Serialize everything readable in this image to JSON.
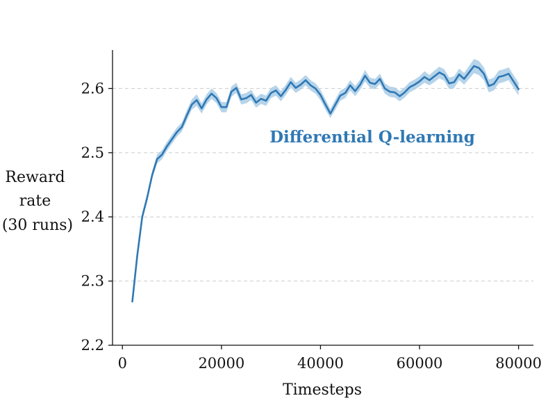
{
  "chart_data": {
    "type": "line",
    "xlabel": "Timesteps",
    "ylabel": [
      "Reward",
      "rate",
      "(30 runs)"
    ],
    "xlim": [
      -2000,
      83000
    ],
    "ylim": [
      2.2,
      2.66
    ],
    "xticks": [
      0,
      20000,
      40000,
      60000,
      80000
    ],
    "xtick_labels": [
      "0",
      "20000",
      "40000",
      "60000",
      "80000"
    ],
    "yticks": [
      2.2,
      2.3,
      2.4,
      2.5,
      2.6
    ],
    "ytick_labels": [
      "2.2",
      "2.3",
      "2.4",
      "2.5",
      "2.6"
    ],
    "grid": "horizontal-dashed",
    "annotation": "Differential Q-learning",
    "colors": {
      "line": "#2f78b4",
      "band": "#a9cce6",
      "annotation": "#2f78b4",
      "grid": "#cccccc",
      "axis": "#111111"
    },
    "series": [
      {
        "x": [
          2000,
          3000,
          4000,
          5000,
          6000,
          7000,
          8000,
          9000,
          10000,
          11000,
          12000,
          13000,
          14000,
          15000,
          16000,
          17000,
          18000,
          19000,
          20000,
          21000,
          22000,
          23000,
          24000,
          25000,
          26000,
          27000,
          28000,
          29000,
          30000,
          31000,
          32000,
          33000,
          34000,
          35000,
          36000,
          37000,
          38000,
          39000,
          40000,
          41000,
          42000,
          43000,
          44000,
          45000,
          46000,
          47000,
          48000,
          49000,
          50000,
          51000,
          52000,
          53000,
          54000,
          55000,
          56000,
          57000,
          58000,
          59000,
          60000,
          61000,
          62000,
          63000,
          64000,
          65000,
          66000,
          67000,
          68000,
          69000,
          70000,
          71000,
          72000,
          73000,
          74000,
          75000,
          76000,
          77000,
          78000,
          79000,
          80000
        ],
        "y": [
          2.268,
          2.34,
          2.4,
          2.43,
          2.465,
          2.49,
          2.497,
          2.51,
          2.521,
          2.532,
          2.54,
          2.558,
          2.575,
          2.582,
          2.569,
          2.583,
          2.592,
          2.585,
          2.571,
          2.571,
          2.595,
          2.601,
          2.583,
          2.585,
          2.59,
          2.578,
          2.584,
          2.581,
          2.593,
          2.597,
          2.588,
          2.598,
          2.61,
          2.601,
          2.606,
          2.613,
          2.605,
          2.6,
          2.59,
          2.575,
          2.561,
          2.575,
          2.589,
          2.593,
          2.605,
          2.596,
          2.606,
          2.62,
          2.609,
          2.607,
          2.615,
          2.6,
          2.595,
          2.594,
          2.588,
          2.594,
          2.602,
          2.606,
          2.611,
          2.618,
          2.613,
          2.619,
          2.625,
          2.621,
          2.608,
          2.61,
          2.622,
          2.615,
          2.625,
          2.635,
          2.632,
          2.623,
          2.604,
          2.607,
          2.618,
          2.62,
          2.623,
          2.611,
          2.599
        ],
        "err": [
          0.004,
          0.005,
          0.006,
          0.006,
          0.006,
          0.007,
          0.007,
          0.007,
          0.007,
          0.007,
          0.007,
          0.008,
          0.008,
          0.009,
          0.008,
          0.008,
          0.008,
          0.008,
          0.008,
          0.008,
          0.008,
          0.008,
          0.008,
          0.008,
          0.008,
          0.008,
          0.008,
          0.008,
          0.008,
          0.008,
          0.008,
          0.008,
          0.008,
          0.008,
          0.008,
          0.008,
          0.008,
          0.008,
          0.008,
          0.008,
          0.007,
          0.008,
          0.008,
          0.008,
          0.008,
          0.008,
          0.008,
          0.009,
          0.008,
          0.008,
          0.008,
          0.008,
          0.008,
          0.008,
          0.008,
          0.008,
          0.008,
          0.008,
          0.008,
          0.009,
          0.008,
          0.009,
          0.009,
          0.009,
          0.009,
          0.009,
          0.009,
          0.009,
          0.01,
          0.011,
          0.011,
          0.01,
          0.01,
          0.01,
          0.01,
          0.01,
          0.01,
          0.01,
          0.01
        ]
      }
    ]
  }
}
